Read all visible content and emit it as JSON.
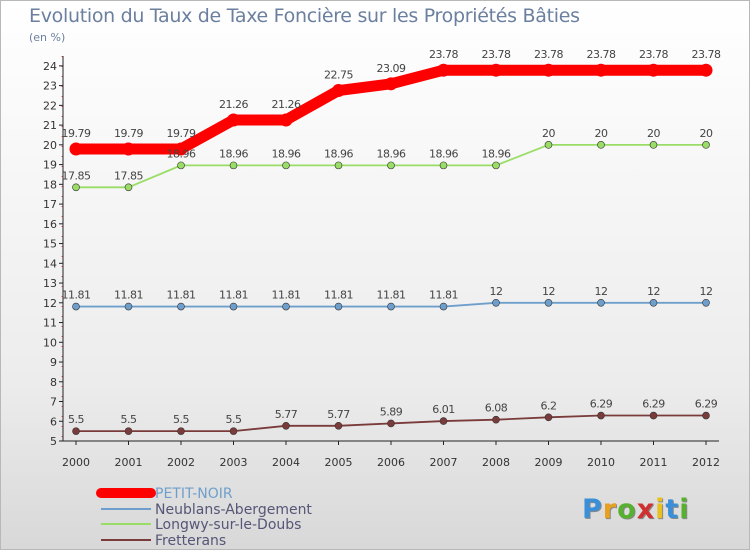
{
  "chart_data": {
    "type": "line",
    "title": "Evolution du Taux de Taxe Foncière sur les Propriétés Bâties",
    "ylabel": "(en %)",
    "xlabel": "",
    "x": [
      "2000",
      "2001",
      "2002",
      "2003",
      "2004",
      "2005",
      "2006",
      "2007",
      "2008",
      "2009",
      "2010",
      "2011",
      "2012"
    ],
    "yticks": [
      "5",
      "6",
      "7",
      "8",
      "9",
      "10",
      "11",
      "12",
      "13",
      "14",
      "15",
      "16",
      "17",
      "18",
      "19",
      "20",
      "21",
      "22",
      "23",
      "24"
    ],
    "ylim": [
      5,
      24.5
    ],
    "grid": false,
    "legend_position": "bottom-left",
    "series": [
      {
        "name": "PETIT-NOIR",
        "color": "#ff0000",
        "values": [
          19.79,
          19.79,
          19.79,
          21.26,
          21.26,
          22.75,
          23.09,
          23.78,
          23.78,
          23.78,
          23.78,
          23.78,
          23.78
        ],
        "labels": [
          "19.79",
          "19.79",
          "19.79",
          "21.26",
          "21.26",
          "22.75",
          "23.09",
          "23.78",
          "23.78",
          "23.78",
          "23.78",
          "23.78",
          "23.78"
        ]
      },
      {
        "name": "Neublans-Abergement",
        "color": "#6e9fcc",
        "values": [
          11.81,
          11.81,
          11.81,
          11.81,
          11.81,
          11.81,
          11.81,
          11.81,
          12,
          12,
          12,
          12,
          12
        ],
        "labels": [
          "11.81",
          "11.81",
          "11.81",
          "11.81",
          "11.81",
          "11.81",
          "11.81",
          "11.81",
          "12",
          "12",
          "12",
          "12",
          "12"
        ]
      },
      {
        "name": "Longwy-sur-le-Doubs",
        "color": "#99dd66",
        "values": [
          17.85,
          17.85,
          18.96,
          18.96,
          18.96,
          18.96,
          18.96,
          18.96,
          18.96,
          20,
          20,
          20,
          20
        ],
        "labels": [
          "17.85",
          "17.85",
          "18.96",
          "18.96",
          "18.96",
          "18.96",
          "18.96",
          "18.96",
          "18.96",
          "20",
          "20",
          "20",
          "20"
        ]
      },
      {
        "name": "Fretterans",
        "color": "#7a3b3b",
        "values": [
          5.5,
          5.5,
          5.5,
          5.5,
          5.77,
          5.77,
          5.89,
          6.01,
          6.08,
          6.2,
          6.29,
          6.29,
          6.29
        ],
        "labels": [
          "5.5",
          "5.5",
          "5.5",
          "5.5",
          "5.77",
          "5.77",
          "5.89",
          "6.01",
          "6.08",
          "6.2",
          "6.29",
          "6.29",
          "6.29"
        ]
      }
    ]
  },
  "logo": {
    "letters": [
      "P",
      "r",
      "o",
      "x",
      "i",
      "t",
      "i"
    ],
    "colors": [
      "#3a8fd8",
      "#e8a020",
      "#58b030",
      "#d03030",
      "#e8c020",
      "#3a8fd8",
      "#58b030"
    ]
  }
}
